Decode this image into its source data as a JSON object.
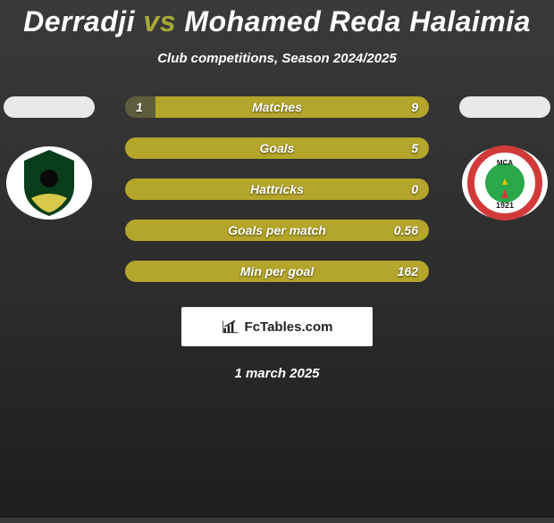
{
  "title_parts": {
    "p1": "Derradji",
    "vs": "vs",
    "p2": "Mohamed Reda Halaimia"
  },
  "title_color_p1": "#ffffff",
  "title_color_vs": "#a6a936",
  "title_color_p2": "#ffffff",
  "subtitle": "Club competitions, Season 2024/2025",
  "date": "1 march 2025",
  "brand": "FcTables.com",
  "teams": {
    "left": {
      "pill_color": "#e9e9e9",
      "crest_bg": "#ffffff",
      "crest_main": "#0a3d1a",
      "crest_accent": "#d9c94a"
    },
    "right": {
      "pill_color": "#e9e9e9",
      "crest_bg": "#ffffff",
      "crest_ring": "#d23a3a",
      "crest_center": "#2aa84a",
      "crest_text": "#1b1b1b"
    }
  },
  "row_colors": {
    "left": "#5e5d3c",
    "right": "#b4a52b",
    "label": "#ffffff"
  },
  "rows": [
    {
      "label": "Matches",
      "left": "1",
      "right": "9",
      "left_w": 10,
      "right_w": 90
    },
    {
      "label": "Goals",
      "left": "",
      "right": "5",
      "left_w": 0,
      "right_w": 100
    },
    {
      "label": "Hattricks",
      "left": "",
      "right": "0",
      "left_w": 0,
      "right_w": 100
    },
    {
      "label": "Goals per match",
      "left": "",
      "right": "0.56",
      "left_w": 0,
      "right_w": 100
    },
    {
      "label": "Min per goal",
      "left": "",
      "right": "162",
      "left_w": 0,
      "right_w": 100
    }
  ]
}
